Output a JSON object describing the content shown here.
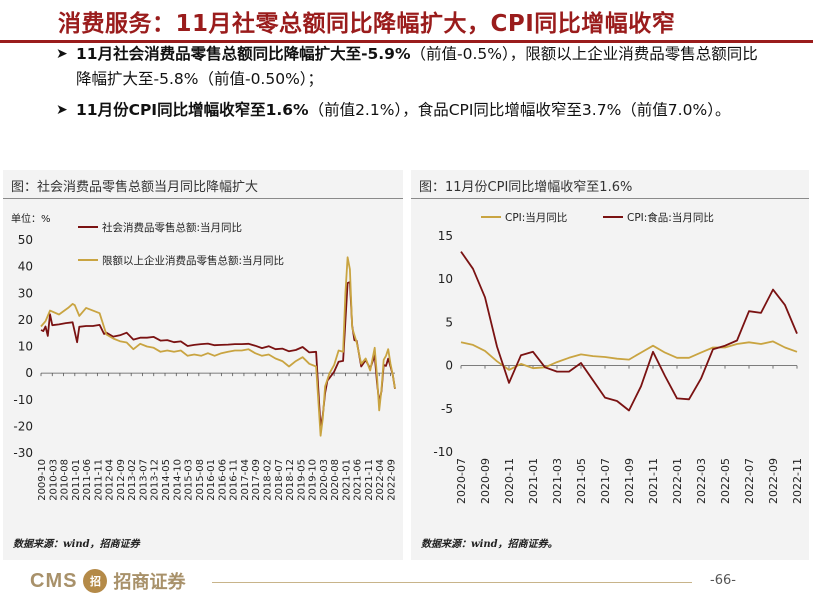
{
  "header": {
    "title": "消费服务：11月社零总额同比降幅扩大，CPI同比增幅收窄"
  },
  "bullets": [
    {
      "lead": "11月社会消费品零售总额同比降幅扩大至-5.9%",
      "rest": "（前值-0.5%），限额以上企业消费品零售总额同比降幅扩大至-5.8%（前值-0.50%）；"
    },
    {
      "lead": "11月份CPI同比增幅收窄至1.6%",
      "rest": "（前值2.1%），食品CPI同比增幅收窄至3.7%（前值7.0%）。"
    }
  ],
  "chart_data": [
    {
      "type": "line",
      "title": "图：社会消费品零售总额当月同比降幅扩大",
      "unit_label": "单位：%",
      "ylim": [
        -30,
        50
      ],
      "yticks": [
        50,
        40,
        30,
        20,
        10,
        0,
        -10,
        -20,
        -30
      ],
      "x_start": "2009-10",
      "x_end": "2022-11",
      "xticks": [
        "2009-10",
        "2010-03",
        "2010-08",
        "2011-01",
        "2011-06",
        "2011-11",
        "2012-04",
        "2012-09",
        "2013-02",
        "2013-07",
        "2013-12",
        "2014-05",
        "2014-10",
        "2015-03",
        "2015-08",
        "2016-01",
        "2016-06",
        "2016-11",
        "2017-04",
        "2017-09",
        "2018-02",
        "2018-07",
        "2018-12",
        "2019-05",
        "2019-10",
        "2020-03",
        "2020-08",
        "2021-01",
        "2021-06",
        "2021-11",
        "2022-04",
        "2022-09"
      ],
      "legend_placement": "top",
      "grid": false,
      "series": [
        {
          "name": "社会消费品零售总额:当月同比",
          "color": "#7a1212",
          "points": [
            [
              "2009-10",
              16.2
            ],
            [
              "2009-11",
              15.8
            ],
            [
              "2009-12",
              17.5
            ],
            [
              "2010-01",
              14.0
            ],
            [
              "2010-02",
              22.1
            ],
            [
              "2010-03",
              18.0
            ],
            [
              "2010-06",
              18.3
            ],
            [
              "2010-09",
              18.8
            ],
            [
              "2010-12",
              19.1
            ],
            [
              "2011-02",
              11.6
            ],
            [
              "2011-03",
              17.4
            ],
            [
              "2011-06",
              17.7
            ],
            [
              "2011-09",
              17.7
            ],
            [
              "2011-12",
              18.1
            ],
            [
              "2012-02",
              14.7
            ],
            [
              "2012-03",
              15.2
            ],
            [
              "2012-06",
              13.7
            ],
            [
              "2012-09",
              14.2
            ],
            [
              "2012-12",
              15.2
            ],
            [
              "2013-03",
              12.6
            ],
            [
              "2013-06",
              13.3
            ],
            [
              "2013-09",
              13.3
            ],
            [
              "2013-12",
              13.6
            ],
            [
              "2014-03",
              12.2
            ],
            [
              "2014-06",
              12.4
            ],
            [
              "2014-09",
              11.6
            ],
            [
              "2014-12",
              11.9
            ],
            [
              "2015-03",
              10.2
            ],
            [
              "2015-06",
              10.6
            ],
            [
              "2015-09",
              10.9
            ],
            [
              "2015-12",
              11.1
            ],
            [
              "2016-03",
              10.5
            ],
            [
              "2016-06",
              10.6
            ],
            [
              "2016-09",
              10.7
            ],
            [
              "2016-12",
              10.9
            ],
            [
              "2017-03",
              10.9
            ],
            [
              "2017-06",
              11.0
            ],
            [
              "2017-09",
              10.3
            ],
            [
              "2017-12",
              9.4
            ],
            [
              "2018-03",
              10.1
            ],
            [
              "2018-06",
              9.0
            ],
            [
              "2018-09",
              9.2
            ],
            [
              "2018-12",
              8.2
            ],
            [
              "2019-03",
              8.7
            ],
            [
              "2019-06",
              9.8
            ],
            [
              "2019-09",
              7.8
            ],
            [
              "2019-12",
              8.0
            ],
            [
              "2020-02",
              -20.5
            ],
            [
              "2020-03",
              -15.8
            ],
            [
              "2020-04",
              -7.5
            ],
            [
              "2020-05",
              -2.8
            ],
            [
              "2020-06",
              -1.8
            ],
            [
              "2020-08",
              0.5
            ],
            [
              "2020-10",
              4.3
            ],
            [
              "2020-12",
              4.6
            ],
            [
              "2021-02",
              33.8
            ],
            [
              "2021-03",
              34.2
            ],
            [
              "2021-04",
              17.7
            ],
            [
              "2021-05",
              12.4
            ],
            [
              "2021-06",
              12.1
            ],
            [
              "2021-08",
              2.5
            ],
            [
              "2021-10",
              4.9
            ],
            [
              "2021-12",
              1.7
            ],
            [
              "2022-02",
              6.7
            ],
            [
              "2022-03",
              -3.5
            ],
            [
              "2022-04",
              -11.1
            ],
            [
              "2022-05",
              -6.7
            ],
            [
              "2022-06",
              3.1
            ],
            [
              "2022-07",
              2.7
            ],
            [
              "2022-08",
              5.4
            ],
            [
              "2022-09",
              2.5
            ],
            [
              "2022-10",
              -0.5
            ],
            [
              "2022-11",
              -5.9
            ]
          ]
        },
        {
          "name": "限额以上企业消费品零售总额:当月同比",
          "color": "#c9a441",
          "points": [
            [
              "2009-10",
              17.5
            ],
            [
              "2009-12",
              19.5
            ],
            [
              "2010-02",
              23.5
            ],
            [
              "2010-06",
              22.0
            ],
            [
              "2010-10",
              24.5
            ],
            [
              "2010-12",
              26.0
            ],
            [
              "2011-01",
              25.5
            ],
            [
              "2011-03",
              21.5
            ],
            [
              "2011-06",
              24.5
            ],
            [
              "2011-09",
              23.5
            ],
            [
              "2011-12",
              22.5
            ],
            [
              "2012-03",
              14.5
            ],
            [
              "2012-06",
              13.0
            ],
            [
              "2012-09",
              12.0
            ],
            [
              "2012-12",
              11.5
            ],
            [
              "2013-03",
              9.0
            ],
            [
              "2013-06",
              11.0
            ],
            [
              "2013-09",
              10.0
            ],
            [
              "2013-12",
              9.5
            ],
            [
              "2014-03",
              8.0
            ],
            [
              "2014-06",
              8.5
            ],
            [
              "2014-09",
              8.0
            ],
            [
              "2014-12",
              8.5
            ],
            [
              "2015-03",
              6.5
            ],
            [
              "2015-06",
              7.0
            ],
            [
              "2015-09",
              6.5
            ],
            [
              "2015-12",
              7.5
            ],
            [
              "2016-03",
              6.5
            ],
            [
              "2016-06",
              7.5
            ],
            [
              "2016-09",
              8.0
            ],
            [
              "2016-12",
              8.5
            ],
            [
              "2017-03",
              8.5
            ],
            [
              "2017-06",
              9.0
            ],
            [
              "2017-09",
              7.5
            ],
            [
              "2017-12",
              6.5
            ],
            [
              "2018-03",
              7.0
            ],
            [
              "2018-06",
              5.5
            ],
            [
              "2018-09",
              4.5
            ],
            [
              "2018-12",
              2.5
            ],
            [
              "2019-03",
              4.5
            ],
            [
              "2019-06",
              6.0
            ],
            [
              "2019-09",
              3.5
            ],
            [
              "2019-12",
              2.5
            ],
            [
              "2020-02",
              -23.5
            ],
            [
              "2020-03",
              -17.0
            ],
            [
              "2020-04",
              -5.0
            ],
            [
              "2020-06",
              0.0
            ],
            [
              "2020-08",
              3.0
            ],
            [
              "2020-10",
              8.5
            ],
            [
              "2020-12",
              8.0
            ],
            [
              "2021-01",
              30.0
            ],
            [
              "2021-02",
              43.5
            ],
            [
              "2021-03",
              39.0
            ],
            [
              "2021-04",
              17.0
            ],
            [
              "2021-06",
              11.5
            ],
            [
              "2021-08",
              3.5
            ],
            [
              "2021-10",
              5.5
            ],
            [
              "2021-12",
              1.0
            ],
            [
              "2022-02",
              9.5
            ],
            [
              "2022-03",
              -1.0
            ],
            [
              "2022-04",
              -14.0
            ],
            [
              "2022-05",
              -6.0
            ],
            [
              "2022-06",
              5.0
            ],
            [
              "2022-07",
              6.5
            ],
            [
              "2022-08",
              9.0
            ],
            [
              "2022-09",
              3.5
            ],
            [
              "2022-10",
              -0.5
            ],
            [
              "2022-11",
              -5.8
            ]
          ]
        }
      ]
    },
    {
      "type": "line",
      "title": "图：11月份CPI同比增幅收窄至1.6%",
      "ylim": [
        -10,
        15
      ],
      "yticks": [
        15,
        10,
        5,
        0,
        -5,
        -10
      ],
      "x_start": "2020-07",
      "x_end": "2022-11",
      "xticks": [
        "2020-07",
        "2020-09",
        "2020-11",
        "2021-01",
        "2021-03",
        "2021-05",
        "2021-07",
        "2021-09",
        "2021-11",
        "2022-01",
        "2022-03",
        "2022-05",
        "2022-07",
        "2022-09",
        "2022-11"
      ],
      "legend_placement": "top",
      "grid": false,
      "series": [
        {
          "name": "CPI:当月同比",
          "color": "#c9a441",
          "points": [
            [
              "2020-07",
              2.7
            ],
            [
              "2020-08",
              2.4
            ],
            [
              "2020-09",
              1.7
            ],
            [
              "2020-10",
              0.5
            ],
            [
              "2020-11",
              -0.5
            ],
            [
              "2020-12",
              0.2
            ],
            [
              "2021-01",
              -0.3
            ],
            [
              "2021-02",
              -0.2
            ],
            [
              "2021-03",
              0.4
            ],
            [
              "2021-04",
              0.9
            ],
            [
              "2021-05",
              1.3
            ],
            [
              "2021-06",
              1.1
            ],
            [
              "2021-07",
              1.0
            ],
            [
              "2021-08",
              0.8
            ],
            [
              "2021-09",
              0.7
            ],
            [
              "2021-10",
              1.5
            ],
            [
              "2021-11",
              2.3
            ],
            [
              "2021-12",
              1.5
            ],
            [
              "2022-01",
              0.9
            ],
            [
              "2022-02",
              0.9
            ],
            [
              "2022-03",
              1.5
            ],
            [
              "2022-04",
              2.1
            ],
            [
              "2022-05",
              2.1
            ],
            [
              "2022-06",
              2.5
            ],
            [
              "2022-07",
              2.7
            ],
            [
              "2022-08",
              2.5
            ],
            [
              "2022-09",
              2.8
            ],
            [
              "2022-10",
              2.1
            ],
            [
              "2022-11",
              1.6
            ]
          ]
        },
        {
          "name": "CPI:食品:当月同比",
          "color": "#7a1212",
          "points": [
            [
              "2020-07",
              13.2
            ],
            [
              "2020-08",
              11.2
            ],
            [
              "2020-09",
              7.9
            ],
            [
              "2020-10",
              2.2
            ],
            [
              "2020-11",
              -2.0
            ],
            [
              "2020-12",
              1.2
            ],
            [
              "2021-01",
              1.6
            ],
            [
              "2021-02",
              -0.2
            ],
            [
              "2021-03",
              -0.7
            ],
            [
              "2021-04",
              -0.7
            ],
            [
              "2021-05",
              0.3
            ],
            [
              "2021-06",
              -1.7
            ],
            [
              "2021-07",
              -3.7
            ],
            [
              "2021-08",
              -4.1
            ],
            [
              "2021-09",
              -5.2
            ],
            [
              "2021-10",
              -2.4
            ],
            [
              "2021-11",
              1.6
            ],
            [
              "2021-12",
              -1.2
            ],
            [
              "2022-01",
              -3.8
            ],
            [
              "2022-02",
              -3.9
            ],
            [
              "2022-03",
              -1.5
            ],
            [
              "2022-04",
              1.9
            ],
            [
              "2022-05",
              2.3
            ],
            [
              "2022-06",
              2.9
            ],
            [
              "2022-07",
              6.3
            ],
            [
              "2022-08",
              6.1
            ],
            [
              "2022-09",
              8.8
            ],
            [
              "2022-10",
              7.0
            ],
            [
              "2022-11",
              3.7
            ]
          ]
        }
      ]
    }
  ],
  "sources": [
    "数据来源：wind，招商证券",
    "数据来源：wind，招商证券。"
  ],
  "footer": {
    "logo_text": "CMS",
    "logo_mark_text": "招",
    "logo_cn": "招商证券",
    "page_number": "-66-"
  }
}
